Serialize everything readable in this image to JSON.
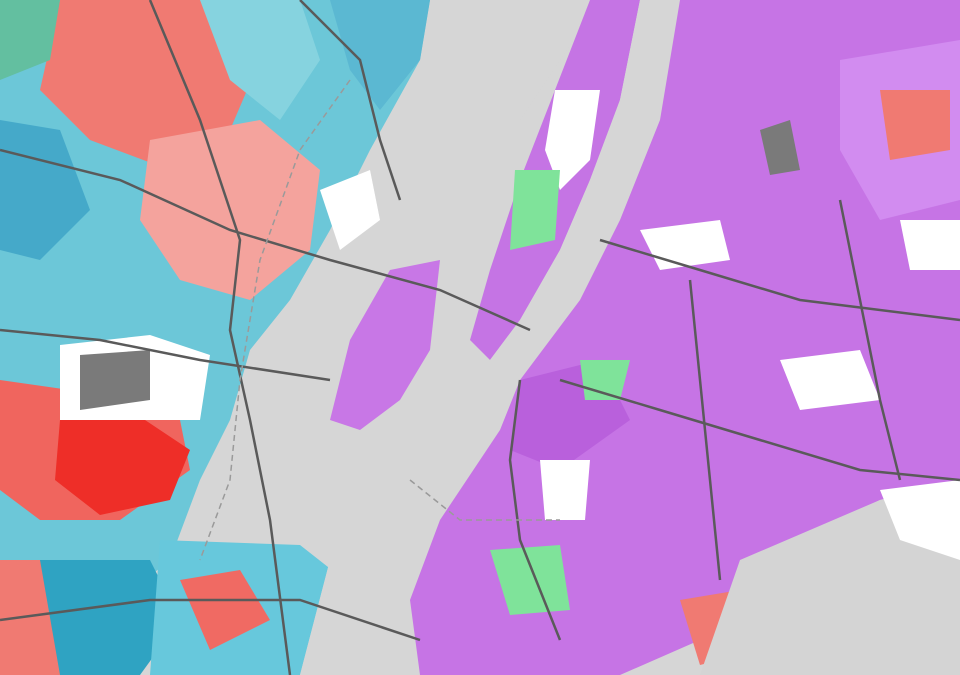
{
  "map": {
    "kind": "thematic choropleth map (census tracts)",
    "labels_visible": false,
    "palette": {
      "water": "#d6d6d6",
      "unmapped_land": "#ffffff",
      "parks_and_industrial": "#7a7a7a",
      "roads": "#5a5a5a",
      "boundaries": "#4a4a4a",
      "cyan_category": "#5fc6d8",
      "red_category": "#f06a63",
      "purple_category": "#c778e6",
      "green_category": "#7fe39a",
      "orange_category": "#f0a060"
    }
  }
}
